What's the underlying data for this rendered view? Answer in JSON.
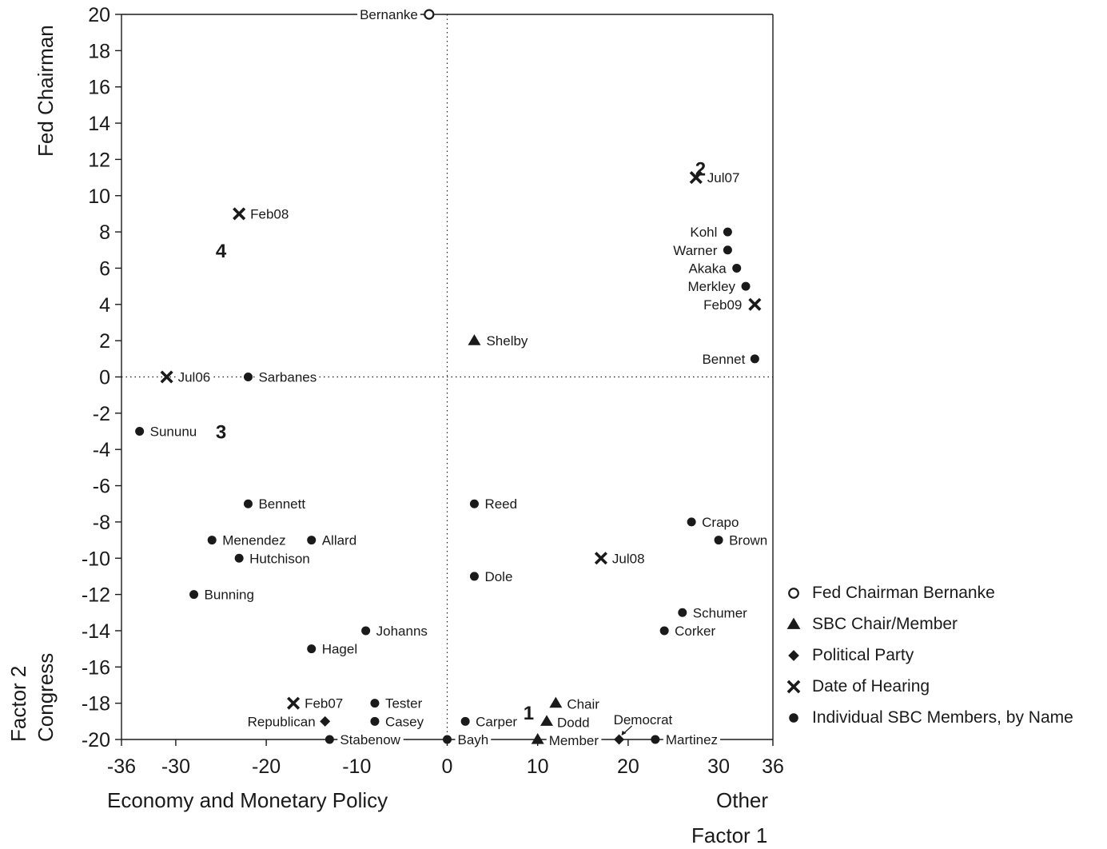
{
  "chart_data": {
    "type": "scatter",
    "x_ticks": [
      -36,
      -30,
      -20,
      -10,
      0,
      10,
      20,
      30,
      36
    ],
    "y_ticks": [
      20,
      18,
      16,
      14,
      12,
      10,
      8,
      6,
      4,
      2,
      0,
      -2,
      -4,
      -6,
      -8,
      -10,
      -12,
      -14,
      -16,
      -18,
      -20
    ],
    "xlim": [
      -36,
      36
    ],
    "ylim": [
      -20,
      20
    ],
    "x_axis_title_left": "Economy and Monetary Policy",
    "x_axis_title_right": "Other",
    "x_axis_factor": "Factor 1",
    "y_axis_title_top": "Fed Chairman",
    "y_axis_title_bottom": "Congress",
    "y_axis_factor": "Factor 2",
    "reference_lines": {
      "x": 0,
      "y": 0,
      "style": "dotted"
    },
    "series": [
      {
        "name": "Fed Chairman Bernanke",
        "marker": "open-circle",
        "points": [
          {
            "label": "Bernanke",
            "x": -2,
            "y": 20
          }
        ]
      },
      {
        "name": "SBC Chair/Member",
        "marker": "triangle",
        "points": [
          {
            "label": "Shelby",
            "x": 3,
            "y": 2
          },
          {
            "label": "Chair",
            "x": 12,
            "y": -18
          },
          {
            "label": "Dodd",
            "x": 11,
            "y": -19
          },
          {
            "label": "Member",
            "x": 10,
            "y": -20
          }
        ]
      },
      {
        "name": "Political Party",
        "marker": "diamond",
        "points": [
          {
            "label": "Republican",
            "x": -13.5,
            "y": -19
          },
          {
            "label": "Democrat",
            "x": 19,
            "y": -20
          }
        ]
      },
      {
        "name": "Date of Hearing",
        "marker": "x",
        "points": [
          {
            "label": "Jul07",
            "x": 27.5,
            "y": 11
          },
          {
            "label": "Feb08",
            "x": -23,
            "y": 9
          },
          {
            "label": "Feb09",
            "x": 34,
            "y": 4
          },
          {
            "label": "Jul06",
            "x": -31,
            "y": 0
          },
          {
            "label": "Jul08",
            "x": 17,
            "y": -10
          },
          {
            "label": "Feb07",
            "x": -17,
            "y": -18
          }
        ]
      },
      {
        "name": "Individual SBC Members, by Name",
        "marker": "filled-circle",
        "points": [
          {
            "label": "Kohl",
            "x": 31,
            "y": 8
          },
          {
            "label": "Warner",
            "x": 31,
            "y": 7
          },
          {
            "label": "Akaka",
            "x": 32,
            "y": 6
          },
          {
            "label": "Merkley",
            "x": 33,
            "y": 5
          },
          {
            "label": "Bennet",
            "x": 34,
            "y": 1
          },
          {
            "label": "Sarbanes",
            "x": -22,
            "y": 0
          },
          {
            "label": "Sununu",
            "x": -34,
            "y": -3
          },
          {
            "label": "Bennett",
            "x": -22,
            "y": -7
          },
          {
            "label": "Reed",
            "x": 3,
            "y": -7
          },
          {
            "label": "Crapo",
            "x": 27,
            "y": -8
          },
          {
            "label": "Menendez",
            "x": -26,
            "y": -9
          },
          {
            "label": "Allard",
            "x": -15,
            "y": -9
          },
          {
            "label": "Brown",
            "x": 30,
            "y": -9
          },
          {
            "label": "Hutchison",
            "x": -23,
            "y": -10
          },
          {
            "label": "Dole",
            "x": 3,
            "y": -11
          },
          {
            "label": "Bunning",
            "x": -28,
            "y": -12
          },
          {
            "label": "Schumer",
            "x": 26,
            "y": -13
          },
          {
            "label": "Johanns",
            "x": -9,
            "y": -14
          },
          {
            "label": "Corker",
            "x": 24,
            "y": -14
          },
          {
            "label": "Hagel",
            "x": -15,
            "y": -15
          },
          {
            "label": "Tester",
            "x": -8,
            "y": -18
          },
          {
            "label": "Casey",
            "x": -8,
            "y": -19
          },
          {
            "label": "Carper",
            "x": 2,
            "y": -19
          },
          {
            "label": "Stabenow",
            "x": -13,
            "y": -20
          },
          {
            "label": "Bayh",
            "x": 0,
            "y": -20
          },
          {
            "label": "Martinez",
            "x": 23,
            "y": -20
          }
        ]
      }
    ],
    "quadrant_labels": [
      {
        "text": "1",
        "x": 9,
        "y": -18.5
      },
      {
        "text": "2",
        "x": 28,
        "y": 11.5
      },
      {
        "text": "3",
        "x": -25,
        "y": -3
      },
      {
        "text": "4",
        "x": -25,
        "y": 7
      }
    ],
    "legend": {
      "position": "right-bottom"
    }
  }
}
